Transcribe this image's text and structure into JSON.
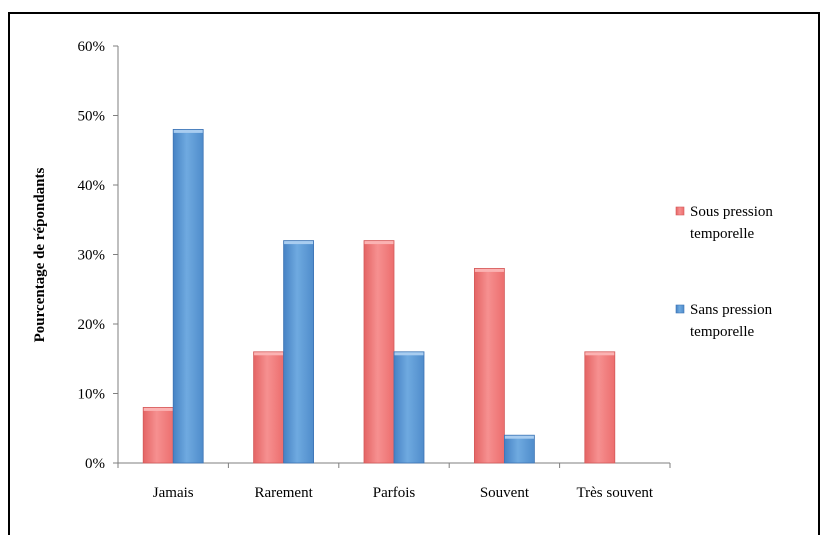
{
  "chart_data": {
    "type": "bar",
    "title": "",
    "xlabel": "",
    "ylabel": "Pourcentage de répondants",
    "categories": [
      "Jamais",
      "Rarement",
      "Parfois",
      "Souvent",
      "Très souvent"
    ],
    "series": [
      {
        "name": "Sous pression temporelle",
        "name_lines": [
          "Sous pression",
          "temporelle"
        ],
        "values": [
          8,
          16,
          32,
          28,
          16
        ],
        "color": "#F47C7C"
      },
      {
        "name": "Sans pression temporelle",
        "name_lines": [
          "Sans pression",
          "temporelle"
        ],
        "values": [
          48,
          32,
          16,
          4,
          0
        ],
        "color": "#5B9BD5"
      }
    ],
    "ylim": [
      0,
      60
    ],
    "yticks": [
      0,
      10,
      20,
      30,
      40,
      50,
      60
    ],
    "ytick_labels": [
      "0%",
      "10%",
      "20%",
      "30%",
      "40%",
      "50%",
      "60%"
    ],
    "grid": false,
    "legend_position": "right"
  }
}
